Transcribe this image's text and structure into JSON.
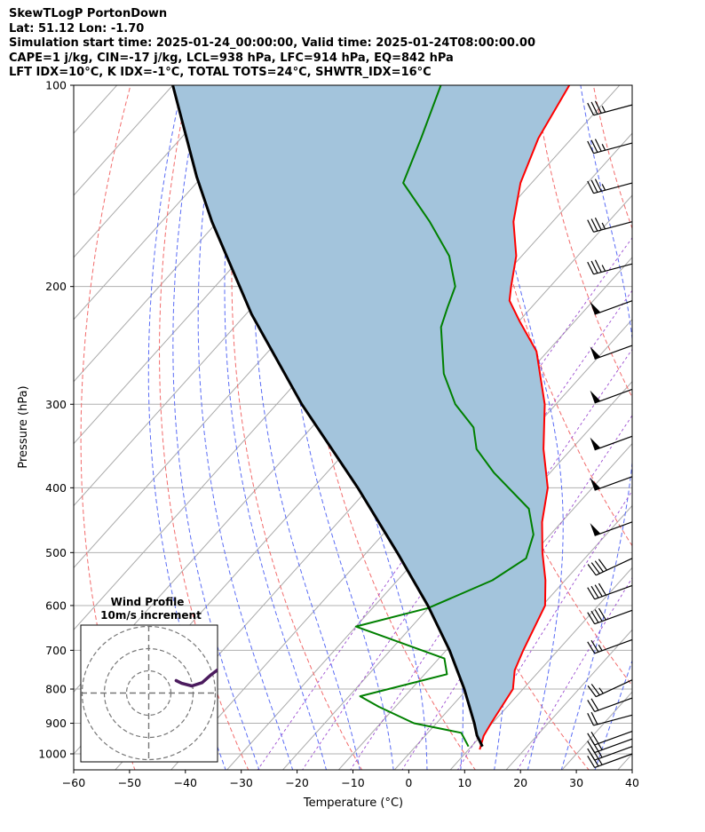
{
  "header": {
    "title": "SkewTLogP PortonDown",
    "location": "Lat: 51.12   Lon: -1.70",
    "times": "Simulation start time: 2025-01-24_00:00:00, Valid time: 2025-01-24T08:00:00.00",
    "params1": "CAPE=1 j/kg, CIN=-17 j/kg, LCL=938 hPa, LFC=914 hPa, EQ=842 hPa",
    "params2": "LFT IDX=10°C, K IDX=-1°C, TOTAL TOTS=24°C, SHWTR_IDX=16°C"
  },
  "chart_data": {
    "type": "line",
    "subtype": "skew-T log-P diagram",
    "xlabel": "Temperature (°C)",
    "ylabel": "Pressure (hPa)",
    "xlim": [
      -60,
      40
    ],
    "ylim": [
      1050,
      100
    ],
    "log_y": true,
    "x_ticks": [
      "−60",
      "−50",
      "−40",
      "−30",
      "−20",
      "−10",
      "0",
      "10",
      "20",
      "30",
      "40"
    ],
    "y_ticks": [
      "1000",
      "900",
      "800",
      "700",
      "600",
      "500",
      "400",
      "300",
      "200",
      "100"
    ],
    "series": [
      {
        "role": "temperature",
        "color": "#ff0000",
        "points": [
          [
            12.0,
            985
          ],
          [
            10.5,
            940
          ],
          [
            9.8,
            900
          ],
          [
            8.2,
            800
          ],
          [
            5.5,
            750
          ],
          [
            3.8,
            700
          ],
          [
            0.5,
            600
          ],
          [
            -3.5,
            550
          ],
          [
            -8.5,
            500
          ],
          [
            -13.5,
            450
          ],
          [
            -18,
            400
          ],
          [
            -25,
            350
          ],
          [
            -32,
            300
          ],
          [
            -42,
            250
          ],
          [
            -50,
            225
          ],
          [
            -55,
            210
          ],
          [
            -57,
            200
          ],
          [
            -61,
            180
          ],
          [
            -67,
            160
          ],
          [
            -72,
            140
          ],
          [
            -76,
            120
          ],
          [
            -79,
            100
          ]
        ]
      },
      {
        "role": "dewpoint",
        "color": "#008000",
        "points": [
          [
            9.5,
            975
          ],
          [
            6.0,
            930
          ],
          [
            -4,
            900
          ],
          [
            -13,
            850
          ],
          [
            -18,
            820
          ],
          [
            -6,
            760
          ],
          [
            -9,
            720
          ],
          [
            -30,
            645
          ],
          [
            -20,
            605
          ],
          [
            -13,
            550
          ],
          [
            -10.5,
            510
          ],
          [
            -13,
            470
          ],
          [
            -18,
            430
          ],
          [
            -30,
            380
          ],
          [
            -37,
            350
          ],
          [
            -41,
            325
          ],
          [
            -48,
            300
          ],
          [
            -55,
            270
          ],
          [
            -63,
            230
          ],
          [
            -65,
            215
          ],
          [
            -67,
            200
          ],
          [
            -73,
            180
          ],
          [
            -82,
            160
          ],
          [
            -93,
            140
          ],
          [
            -97,
            120
          ],
          [
            -102,
            100
          ]
        ]
      },
      {
        "role": "parcel",
        "color": "#000000",
        "points": [
          [
            12.0,
            975
          ],
          [
            9.2,
            938
          ],
          [
            6.8,
            900
          ],
          [
            -0.5,
            800
          ],
          [
            -9.4,
            700
          ],
          [
            -20.5,
            600
          ],
          [
            -34.5,
            500
          ],
          [
            -52,
            400
          ],
          [
            -75.5,
            300
          ],
          [
            -99,
            220
          ],
          [
            -121,
            160
          ],
          [
            -131,
            137
          ],
          [
            -150,
            100
          ]
        ]
      }
    ],
    "shaded_area": {
      "label": "CAPE/CIN region",
      "color": "#a3c4dc",
      "between": [
        "temperature",
        "parcel"
      ]
    },
    "wind_barbs": [
      {
        "p": 1000,
        "dir": 250,
        "kt": 25
      },
      {
        "p": 975,
        "dir": 250,
        "kt": 25
      },
      {
        "p": 950,
        "dir": 250,
        "kt": 25
      },
      {
        "p": 925,
        "dir": 250,
        "kt": 20
      },
      {
        "p": 875,
        "dir": 255,
        "kt": 20
      },
      {
        "p": 825,
        "dir": 250,
        "kt": 20
      },
      {
        "p": 775,
        "dir": 245,
        "kt": 25
      },
      {
        "p": 675,
        "dir": 250,
        "kt": 25
      },
      {
        "p": 610,
        "dir": 250,
        "kt": 40
      },
      {
        "p": 560,
        "dir": 250,
        "kt": 40
      },
      {
        "p": 510,
        "dir": 245,
        "kt": 40
      },
      {
        "p": 450,
        "dir": 250,
        "kt": 50
      },
      {
        "p": 385,
        "dir": 250,
        "kt": 50
      },
      {
        "p": 335,
        "dir": 250,
        "kt": 50
      },
      {
        "p": 285,
        "dir": 250,
        "kt": 50
      },
      {
        "p": 245,
        "dir": 250,
        "kt": 50
      },
      {
        "p": 210,
        "dir": 250,
        "kt": 50
      },
      {
        "p": 185,
        "dir": 255,
        "kt": 35
      },
      {
        "p": 160,
        "dir": 255,
        "kt": 35
      },
      {
        "p": 140,
        "dir": 255,
        "kt": 35
      },
      {
        "p": 122,
        "dir": 255,
        "kt": 35
      },
      {
        "p": 107,
        "dir": 255,
        "kt": 35
      }
    ],
    "inset": {
      "title": "Wind Profile",
      "subtitle": "10m/s increment",
      "rings": [
        10,
        20,
        30
      ],
      "hodograph_color": "#4b1b5e",
      "hodograph": [
        [
          7.0,
          3.0
        ],
        [
          7.5,
          4.0
        ],
        [
          8.5,
          5.5
        ],
        [
          9.5,
          7.0
        ],
        [
          10.5,
          8.0
        ],
        [
          11.5,
          9.0
        ],
        [
          12.5,
          10.0
        ],
        [
          13.0,
          10.5
        ]
      ]
    }
  }
}
